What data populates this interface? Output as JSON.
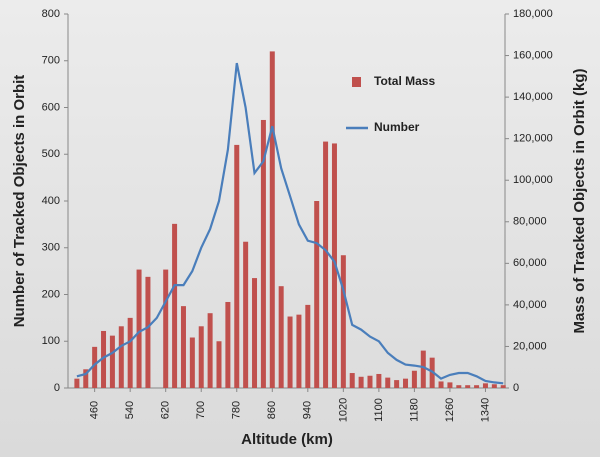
{
  "chart_data": {
    "type": "bar-line",
    "x_label": "Altitude (km)",
    "y_label": "Number of Tracked Objects in Orbit",
    "y2_label": "Mass of Tracked Objects in Orbit (kg)",
    "x": [
      420,
      440,
      460,
      480,
      500,
      520,
      540,
      560,
      580,
      600,
      620,
      640,
      660,
      680,
      700,
      720,
      740,
      760,
      780,
      800,
      820,
      840,
      860,
      880,
      900,
      920,
      940,
      960,
      980,
      1000,
      1020,
      1040,
      1060,
      1080,
      1100,
      1120,
      1140,
      1160,
      1180,
      1200,
      1220,
      1240,
      1260,
      1280,
      1300,
      1320,
      1340,
      1360,
      1380
    ],
    "xlim": [
      400,
      1384
    ],
    "xticks": [
      460,
      540,
      620,
      700,
      780,
      860,
      940,
      1020,
      1100,
      1180,
      1260,
      1340
    ],
    "ylim": [
      0,
      800
    ],
    "yticks": [
      0,
      100,
      200,
      300,
      400,
      500,
      600,
      700,
      800
    ],
    "y2lim": [
      0,
      180000
    ],
    "y2ticks": [
      0,
      {
        "value": 20000,
        "label": "20,000"
      },
      {
        "value": 40000,
        "label": "40,000"
      },
      {
        "value": 60000,
        "label": "60,000"
      },
      {
        "value": 80000,
        "label": "80,000"
      },
      {
        "value": 100000,
        "label": "100,000"
      },
      {
        "value": 120000,
        "label": "120,000"
      },
      {
        "value": 140000,
        "label": "140,000"
      },
      {
        "value": 160000,
        "label": "160,000"
      },
      {
        "value": 180000,
        "label": "180,000"
      }
    ],
    "series": [
      {
        "name": "Total Mass",
        "type": "bar",
        "axis": "y2",
        "color": "#c0504d",
        "values": [
          4500,
          9000,
          19800,
          27450,
          25200,
          29700,
          33750,
          57000,
          53500,
          null,
          57000,
          79000,
          39400,
          24300,
          29700,
          36000,
          22500,
          41400,
          117000,
          70400,
          52900,
          129000,
          162000,
          49000,
          34400,
          35300,
          40000,
          90000,
          118600,
          117700,
          63900,
          7200,
          5400,
          5900,
          6750,
          5000,
          3800,
          4500,
          8300,
          18000,
          14600,
          3150,
          2700,
          1350,
          1350,
          1350,
          2250,
          1800,
          1350
        ]
      },
      {
        "name": "Number",
        "type": "line",
        "axis": "y",
        "color": "#4a7ebb",
        "values": [
          25,
          30,
          50,
          65,
          75,
          90,
          100,
          120,
          130,
          150,
          185,
          220,
          220,
          250,
          300,
          340,
          400,
          510,
          695,
          600,
          460,
          485,
          560,
          470,
          410,
          350,
          315,
          310,
          295,
          270,
          210,
          135,
          125,
          110,
          100,
          75,
          60,
          50,
          48,
          45,
          35,
          20,
          28,
          32,
          32,
          25,
          15,
          12,
          10
        ]
      }
    ]
  }
}
